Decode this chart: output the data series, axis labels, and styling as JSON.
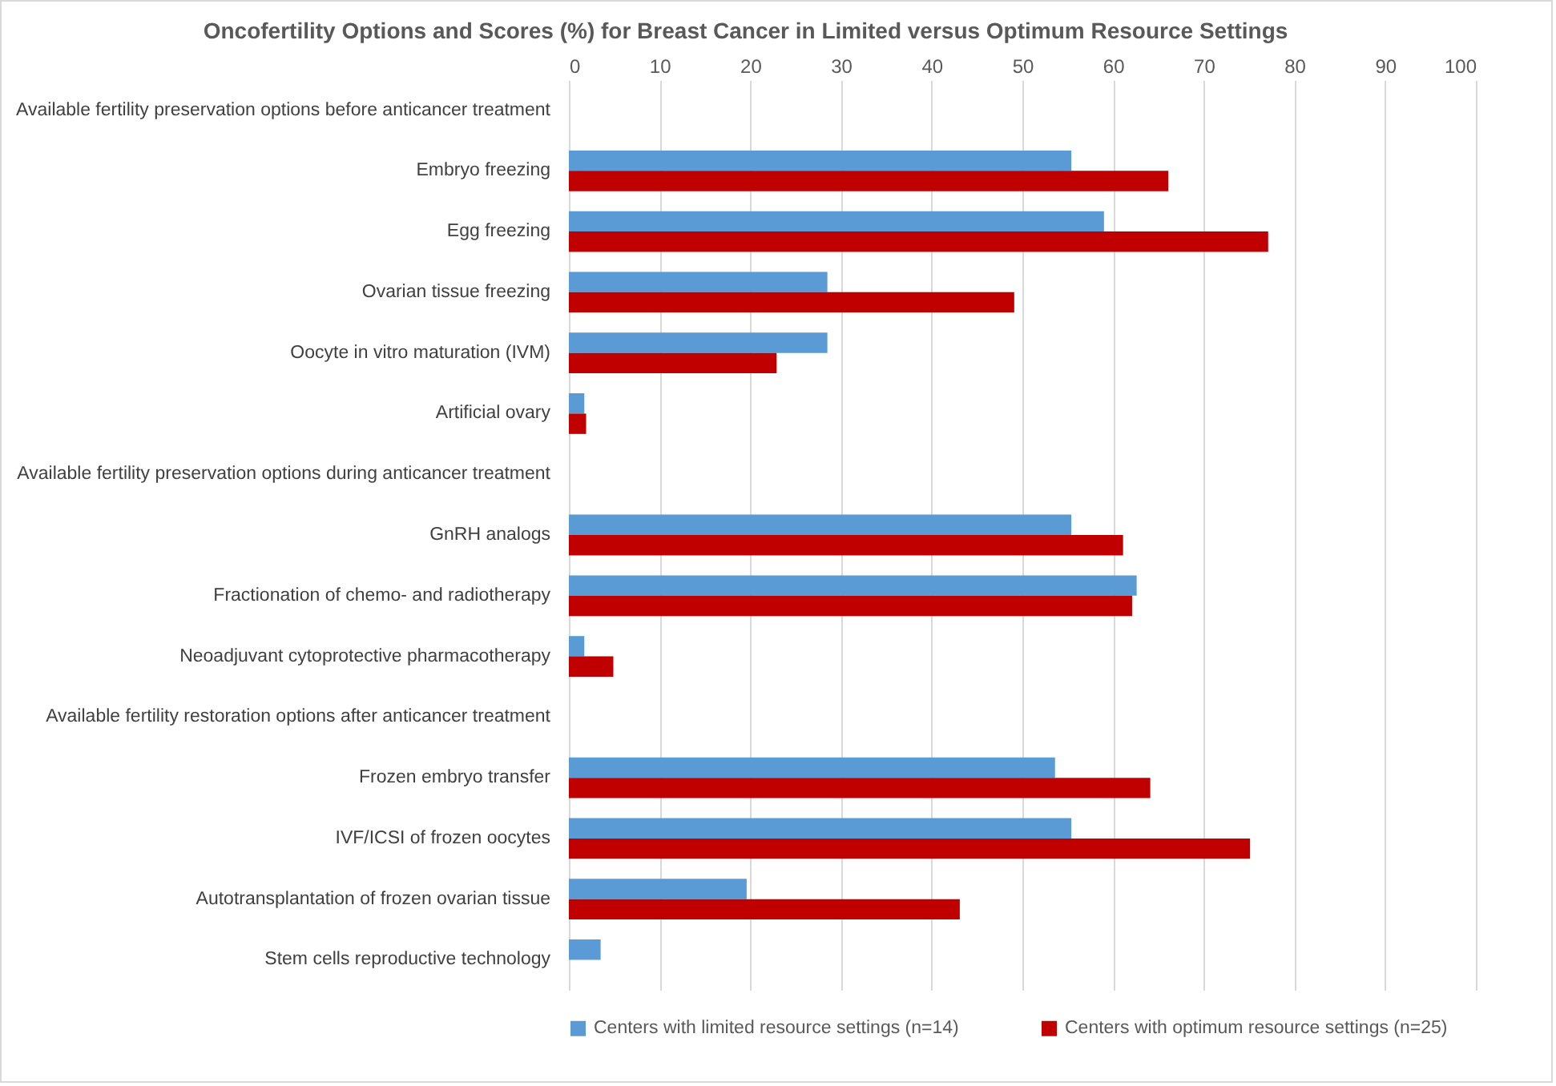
{
  "chart_data": {
    "type": "bar",
    "orientation": "horizontal",
    "title": "Oncofertility Options and Scores (%) for Breast Cancer in Limited versus Optimum Resource Settings",
    "categories": [
      "Available fertility preservation options before anticancer treatment",
      "Embryo freezing",
      "Egg freezing",
      "Ovarian tissue freezing",
      "Oocyte in vitro maturation (IVM)",
      "Artificial ovary",
      "Available fertility preservation options during anticancer treatment",
      "GnRH analogs",
      "Fractionation of chemo- and radiotherapy",
      "Neoadjuvant cytoprotective pharmacotherapy",
      "Available fertility restoration options after anticancer treatment",
      "Frozen embryo transfer",
      "IVF/ICSI of frozen oocytes",
      "Autotransplantation of frozen ovarian tissue",
      "Stem cells reproductive technology"
    ],
    "series": [
      {
        "name": "Centers with limited resource settings (n=14)",
        "color": "#5b9bd5",
        "values": [
          null,
          55.4,
          59.0,
          28.5,
          28.5,
          1.7,
          null,
          55.4,
          62.6,
          1.7,
          null,
          53.6,
          55.4,
          19.6,
          3.5
        ]
      },
      {
        "name": "Centers with optimum resource settings (n=25)",
        "color": "#c00000",
        "values": [
          null,
          66.1,
          77.1,
          49.1,
          22.9,
          1.9,
          null,
          61.1,
          62.1,
          4.9,
          null,
          64.1,
          75.1,
          43.1,
          null
        ]
      }
    ],
    "xlim": [
      0,
      100
    ],
    "xticks": [
      0,
      10,
      20,
      30,
      40,
      50,
      60,
      70,
      80,
      90,
      100
    ],
    "grid": "x",
    "legend": "bottom"
  }
}
